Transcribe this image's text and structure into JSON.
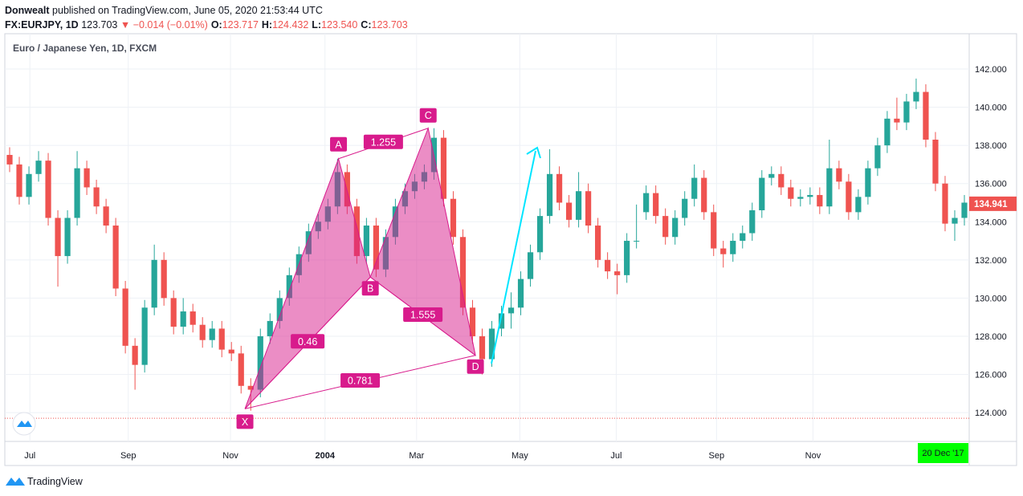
{
  "header": {
    "author": "Donwealt",
    "published": "published on TradingView.com, June 05, 2020 21:53:44 UTC",
    "symbol": "FX:EURJPY, 1D",
    "last": "123.703",
    "change": "▼ −0.014 (−0.01%)",
    "ohlc": [
      {
        "label": "O:",
        "value": "123.717"
      },
      {
        "label": "H:",
        "value": "124.432"
      },
      {
        "label": "L:",
        "value": "123.540"
      },
      {
        "label": "C:",
        "value": "123.703"
      }
    ]
  },
  "footer": {
    "brand": "TradingView"
  },
  "chart_data": {
    "type": "candlestick",
    "title": "Euro / Japanese Yen, 1D, FXCM",
    "up_color": "#26a69a",
    "down_color": "#ef5350",
    "open": [
      137.5,
      137.0,
      135.3,
      136.5,
      137.2,
      134.2,
      132.2,
      134.2,
      136.8,
      135.8,
      134.8,
      133.8,
      130.5,
      127.5,
      126.5,
      129.5,
      132.0,
      130.0,
      128.5,
      129.3,
      128.6,
      127.8,
      128.4,
      127.3,
      127.1,
      125.4,
      125.2,
      128.0,
      128.8,
      130.0,
      131.2,
      132.3,
      133.5,
      134.0,
      134.8,
      136.6,
      134.8,
      132.2,
      133.8,
      131.5,
      133.2,
      134.8,
      135.6,
      136.1,
      136.6,
      138.4,
      135.2,
      133.2,
      129.5,
      128.0,
      126.8,
      128.4,
      129.2,
      129.5,
      131.0,
      132.4,
      134.3,
      136.5,
      135.0,
      134.1,
      135.6,
      133.8,
      132.0,
      131.4,
      131.2,
      133.0,
      134.5,
      135.5,
      134.3,
      133.2,
      134.2,
      135.2,
      136.3,
      134.5,
      132.6,
      132.3,
      133.0,
      133.4,
      134.6,
      136.3,
      136.5,
      135.8,
      135.2,
      135.3,
      135.4,
      134.8,
      136.8,
      136.1,
      134.5,
      135.3,
      136.8,
      138.0,
      139.4,
      139.2,
      140.3,
      140.8,
      138.3,
      136.0,
      133.9,
      134.2
    ],
    "high": [
      137.9,
      137.4,
      136.9,
      137.7,
      137.6,
      134.6,
      134.6,
      137.7,
      137.2,
      136.2,
      135.2,
      134.2,
      130.9,
      127.9,
      129.9,
      132.8,
      132.4,
      130.4,
      130.0,
      129.7,
      129.0,
      128.8,
      128.8,
      127.7,
      127.5,
      125.8,
      128.4,
      129.2,
      130.4,
      131.6,
      132.7,
      133.9,
      134.4,
      135.2,
      137.3,
      137.0,
      135.2,
      134.2,
      134.2,
      133.6,
      135.2,
      136.0,
      136.5,
      137.0,
      138.9,
      138.8,
      135.6,
      133.6,
      129.9,
      128.4,
      128.8,
      129.6,
      130.3,
      131.4,
      132.8,
      134.7,
      137.8,
      136.9,
      135.4,
      136.6,
      136.0,
      134.2,
      132.4,
      131.8,
      133.4,
      134.9,
      135.9,
      135.9,
      134.7,
      134.6,
      135.6,
      137.0,
      136.7,
      134.9,
      133.0,
      133.4,
      133.8,
      135.0,
      136.7,
      136.9,
      136.9,
      136.2,
      135.7,
      135.8,
      135.8,
      138.3,
      137.2,
      136.5,
      135.7,
      137.2,
      138.4,
      139.8,
      140.5,
      140.7,
      141.5,
      141.2,
      138.7,
      136.4,
      134.6,
      135.4
    ],
    "low": [
      136.6,
      134.9,
      134.9,
      136.1,
      133.8,
      130.6,
      131.8,
      133.8,
      135.4,
      134.4,
      133.4,
      130.1,
      127.1,
      125.2,
      126.1,
      129.1,
      129.6,
      128.1,
      128.1,
      128.2,
      127.4,
      127.4,
      126.9,
      126.7,
      125.0,
      124.1,
      124.8,
      127.6,
      128.4,
      129.6,
      130.8,
      131.9,
      133.1,
      133.6,
      134.4,
      134.4,
      131.8,
      131.8,
      131.1,
      131.1,
      132.8,
      134.4,
      135.2,
      135.7,
      136.2,
      134.8,
      132.8,
      129.1,
      127.6,
      126.0,
      126.4,
      128.0,
      128.4,
      129.1,
      130.6,
      132.0,
      133.9,
      134.6,
      133.7,
      133.7,
      133.4,
      131.6,
      131.0,
      130.2,
      130.8,
      132.6,
      134.1,
      133.9,
      132.8,
      132.8,
      133.8,
      134.8,
      134.1,
      132.2,
      131.6,
      131.9,
      132.6,
      133.0,
      134.2,
      135.9,
      135.4,
      134.8,
      134.8,
      134.9,
      134.4,
      134.4,
      135.7,
      134.1,
      134.1,
      134.9,
      136.4,
      137.6,
      138.8,
      138.8,
      139.9,
      137.9,
      135.6,
      133.5,
      133.0,
      133.8
    ],
    "close": [
      137.0,
      135.3,
      136.5,
      137.2,
      134.2,
      132.2,
      134.2,
      136.8,
      135.8,
      134.8,
      133.8,
      130.5,
      127.5,
      126.5,
      129.5,
      132.0,
      130.0,
      128.5,
      129.3,
      128.6,
      127.8,
      128.4,
      127.3,
      127.1,
      125.4,
      125.2,
      128.0,
      128.8,
      130.0,
      131.2,
      132.3,
      133.5,
      134.0,
      134.8,
      136.6,
      134.8,
      132.2,
      133.8,
      131.5,
      133.2,
      134.8,
      135.6,
      136.1,
      136.6,
      138.4,
      135.2,
      133.2,
      129.5,
      128.0,
      126.8,
      128.4,
      129.2,
      129.5,
      131.0,
      132.4,
      134.3,
      136.5,
      135.0,
      134.1,
      135.6,
      133.8,
      132.0,
      131.4,
      131.2,
      133.0,
      133.0,
      135.5,
      134.3,
      133.2,
      134.2,
      135.2,
      136.3,
      134.5,
      132.6,
      132.3,
      133.0,
      133.4,
      134.6,
      136.3,
      136.5,
      135.8,
      135.2,
      135.3,
      135.4,
      134.8,
      136.8,
      136.1,
      134.5,
      135.3,
      136.8,
      138.0,
      139.4,
      139.2,
      140.3,
      140.8,
      138.3,
      136.0,
      133.9,
      134.2,
      135.0
    ],
    "xlim": [
      0,
      100
    ],
    "xticks": [
      {
        "value": 2.6,
        "label": "Jul"
      },
      {
        "value": 12.8,
        "label": "Sep"
      },
      {
        "value": 23.4,
        "label": "Nov"
      },
      {
        "value": 33.2,
        "label": "2004"
      },
      {
        "value": 42.7,
        "label": "Mar"
      },
      {
        "value": 53.4,
        "label": "May"
      },
      {
        "value": 63.4,
        "label": "Jul"
      },
      {
        "value": 73.8,
        "label": "Sep"
      },
      {
        "value": 83.8,
        "label": "Nov"
      }
    ],
    "ylim": [
      122.49,
      143.85
    ],
    "yticks": [
      {
        "value": 124,
        "label": "124.000"
      },
      {
        "value": 126,
        "label": "126.000"
      },
      {
        "value": 128,
        "label": "128.000"
      },
      {
        "value": 130,
        "label": "130.000"
      },
      {
        "value": 132,
        "label": "132.000"
      },
      {
        "value": 134,
        "label": "134.000"
      },
      {
        "value": 136,
        "label": "136.000"
      },
      {
        "value": 138,
        "label": "138.000"
      },
      {
        "value": 140,
        "label": "140.000"
      },
      {
        "value": 142,
        "label": "142.000"
      }
    ],
    "grid": true,
    "last_price": {
      "value": 134.941,
      "label": "134.941",
      "color": "#ef5350"
    },
    "price_line": {
      "value": 123.703,
      "color": "#ef5350"
    },
    "cursor_label": {
      "label": "20 Dec '17",
      "color": "#00ff00"
    },
    "pattern": {
      "color": "#d81b8c",
      "points": [
        {
          "label": "X",
          "x": 24.9,
          "y": 124.2
        },
        {
          "label": "A",
          "x": 34.6,
          "y": 137.3
        },
        {
          "label": "B",
          "x": 37.9,
          "y": 131.1
        },
        {
          "label": "C",
          "x": 43.9,
          "y": 138.9
        },
        {
          "label": "D",
          "x": 48.8,
          "y": 127.0
        }
      ],
      "ratios": [
        1.255,
        0.46,
        1.555,
        0.781
      ]
    }
  }
}
